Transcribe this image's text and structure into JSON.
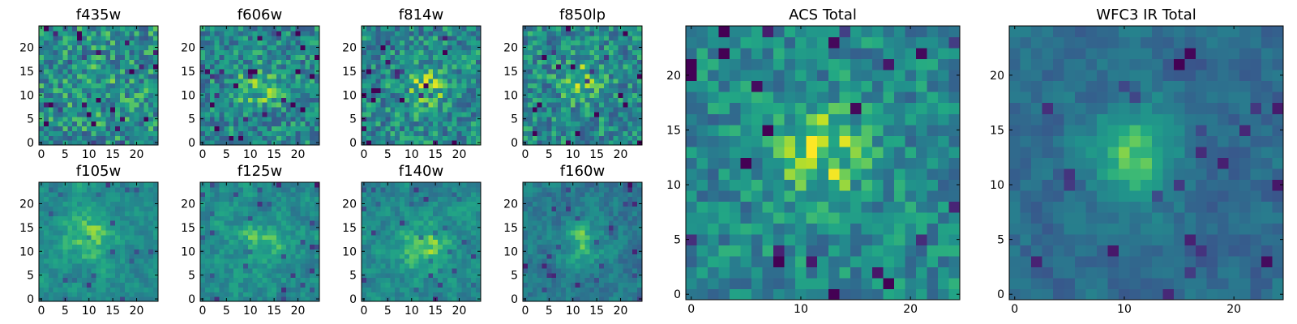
{
  "chart_data": [
    {
      "type": "heatmap",
      "title": "f435w",
      "grid": [
        25,
        25
      ],
      "xlim": [
        -0.5,
        24.5
      ],
      "ylim": [
        -0.5,
        24.5
      ],
      "xticks": [
        0,
        5,
        10,
        15,
        20
      ],
      "yticks": [
        0,
        5,
        10,
        15,
        20
      ],
      "colormap": "viridis",
      "seed": 11,
      "noise": 0.26,
      "blob": 0.05,
      "blob_center": [
        12,
        12
      ],
      "blob_sigma": 3.5,
      "base": 0.6
    },
    {
      "type": "heatmap",
      "title": "f606w",
      "grid": [
        25,
        25
      ],
      "xlim": [
        -0.5,
        24.5
      ],
      "ylim": [
        -0.5,
        24.5
      ],
      "xticks": [
        0,
        5,
        10,
        15,
        20
      ],
      "yticks": [
        0,
        5,
        10,
        15,
        20
      ],
      "colormap": "viridis",
      "seed": 23,
      "noise": 0.24,
      "blob": 0.22,
      "blob_center": [
        12,
        12
      ],
      "blob_sigma": 3.0,
      "base": 0.58
    },
    {
      "type": "heatmap",
      "title": "f814w",
      "grid": [
        25,
        25
      ],
      "xlim": [
        -0.5,
        24.5
      ],
      "ylim": [
        -0.5,
        24.5
      ],
      "xticks": [
        0,
        5,
        10,
        15,
        20
      ],
      "yticks": [
        0,
        5,
        10,
        15,
        20
      ],
      "colormap": "viridis",
      "seed": 37,
      "noise": 0.24,
      "blob": 0.25,
      "blob_center": [
        13,
        12
      ],
      "blob_sigma": 3.0,
      "base": 0.58
    },
    {
      "type": "heatmap",
      "title": "f850lp",
      "grid": [
        25,
        25
      ],
      "xlim": [
        -0.5,
        24.5
      ],
      "ylim": [
        -0.5,
        24.5
      ],
      "xticks": [
        0,
        5,
        10,
        15,
        20
      ],
      "yticks": [
        0,
        5,
        10,
        15,
        20
      ],
      "colormap": "viridis",
      "seed": 41,
      "noise": 0.24,
      "blob": 0.22,
      "blob_center": [
        12,
        13
      ],
      "blob_sigma": 3.0,
      "base": 0.58
    },
    {
      "type": "heatmap",
      "title": "f105w",
      "grid": [
        25,
        25
      ],
      "xlim": [
        -0.5,
        24.5
      ],
      "ylim": [
        -0.5,
        24.5
      ],
      "xticks": [
        0,
        5,
        10,
        15,
        20
      ],
      "yticks": [
        0,
        5,
        10,
        15,
        20
      ],
      "colormap": "viridis",
      "seed": 53,
      "noise": 0.18,
      "blob": 0.25,
      "blob_center": [
        10,
        13
      ],
      "blob_sigma": 3.5,
      "base": 0.62,
      "smooth": true
    },
    {
      "type": "heatmap",
      "title": "f125w",
      "grid": [
        25,
        25
      ],
      "xlim": [
        -0.5,
        24.5
      ],
      "ylim": [
        -0.5,
        24.5
      ],
      "xticks": [
        0,
        5,
        10,
        15,
        20
      ],
      "yticks": [
        0,
        5,
        10,
        15,
        20
      ],
      "colormap": "viridis",
      "seed": 67,
      "noise": 0.2,
      "blob": 0.18,
      "blob_center": [
        12,
        12
      ],
      "blob_sigma": 3.5,
      "base": 0.62,
      "smooth": true
    },
    {
      "type": "heatmap",
      "title": "f140w",
      "grid": [
        25,
        25
      ],
      "xlim": [
        -0.5,
        24.5
      ],
      "ylim": [
        -0.5,
        24.5
      ],
      "xticks": [
        0,
        5,
        10,
        15,
        20
      ],
      "yticks": [
        0,
        5,
        10,
        15,
        20
      ],
      "colormap": "viridis",
      "seed": 71,
      "noise": 0.2,
      "blob": 0.28,
      "blob_center": [
        13,
        11
      ],
      "blob_sigma": 3.5,
      "base": 0.6,
      "smooth": true
    },
    {
      "type": "heatmap",
      "title": "f160w",
      "grid": [
        25,
        25
      ],
      "xlim": [
        -0.5,
        24.5
      ],
      "ylim": [
        -0.5,
        24.5
      ],
      "xticks": [
        0,
        5,
        10,
        15,
        20
      ],
      "yticks": [
        0,
        5,
        10,
        15,
        20
      ],
      "colormap": "viridis",
      "seed": 89,
      "noise": 0.2,
      "blob": 0.3,
      "blob_center": [
        12,
        12
      ],
      "blob_sigma": 3.0,
      "base": 0.52,
      "smooth": true
    },
    {
      "type": "heatmap",
      "title": "ACS Total",
      "grid": [
        25,
        25
      ],
      "xlim": [
        -0.5,
        24.5
      ],
      "ylim": [
        -0.5,
        24.5
      ],
      "xticks": [
        0,
        10,
        20
      ],
      "yticks": [
        0,
        5,
        10,
        15,
        20
      ],
      "colormap": "viridis",
      "seed": 97,
      "noise": 0.2,
      "blob": 0.3,
      "blob_center": [
        12,
        13
      ],
      "blob_sigma": 3.0,
      "base": 0.58
    },
    {
      "type": "heatmap",
      "title": "WFC3 IR Total",
      "grid": [
        25,
        25
      ],
      "xlim": [
        -0.5,
        24.5
      ],
      "ylim": [
        -0.5,
        24.5
      ],
      "xticks": [
        0,
        10,
        20
      ],
      "yticks": [
        0,
        5,
        10,
        15,
        20
      ],
      "colormap": "viridis",
      "seed": 131,
      "noise": 0.15,
      "blob": 0.4,
      "blob_center": [
        11,
        13
      ],
      "blob_sigma": 3.0,
      "base": 0.45,
      "smooth": true
    }
  ]
}
